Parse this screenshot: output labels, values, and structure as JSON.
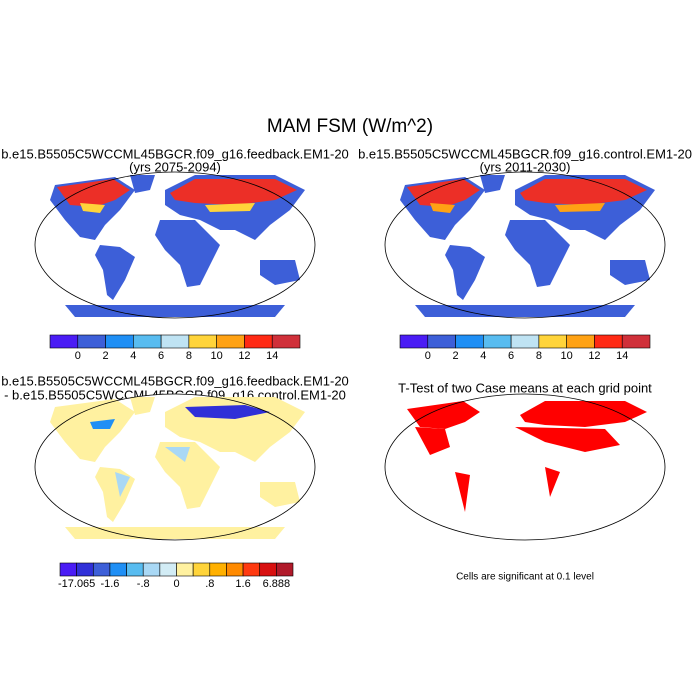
{
  "title": "MAM FSM (W/m^2)",
  "panels": [
    {
      "title_lines": [
        "b.e15.B5505C5WCCML45BGCR.f09_g16.feedback.EM1-20",
        "(yrs 2075-2094)"
      ]
    },
    {
      "title_lines": [
        "b.e15.B5505C5WCCML45BGCR.f09_g16.control.EM1-20",
        "(yrs 2011-2030)"
      ]
    },
    {
      "title_lines": [
        "b.e15.B5505C5WCCML45BGCR.f09_g16.feedback.EM1-20",
        "- b.e15.B5505C5WCCML45BGCR.f09_g16.control.EM1-20"
      ]
    },
    {
      "title_lines": [
        "T-Test of two Case means at each grid point"
      ]
    }
  ],
  "colorbars": [
    {
      "colors": [
        "#4a1cf5",
        "#3d5fd8",
        "#1f8ff5",
        "#58bcf0",
        "#bfe3f3",
        "#ffd43a",
        "#ffa214",
        "#ff2a14",
        "#d0303a"
      ],
      "labels": [
        "0",
        "2",
        "4",
        "6",
        "8",
        "10",
        "12",
        "14"
      ]
    },
    {
      "colors": [
        "#4a1cf5",
        "#3d5fd8",
        "#1f8ff5",
        "#58bcf0",
        "#bfe3f3",
        "#ffd43a",
        "#ffa214",
        "#ff2a14",
        "#d0303a"
      ],
      "labels": [
        "0",
        "2",
        "4",
        "6",
        "8",
        "10",
        "12",
        "14"
      ]
    },
    {
      "colors": [
        "#4a1cf5",
        "#3030d8",
        "#3d5fd8",
        "#1f8ff5",
        "#58bcf0",
        "#a9d8f5",
        "#d2ecf5",
        "#fff1a0",
        "#ffd43a",
        "#ffb000",
        "#ff8a00",
        "#ff3a10",
        "#d81010",
        "#b01a2a"
      ],
      "labels": [
        "-17.065",
        "-1.6",
        "-.8",
        "0",
        ".8",
        "1.6",
        "6.888"
      ]
    }
  ],
  "note": "Cells are significant at 0.1 level"
}
